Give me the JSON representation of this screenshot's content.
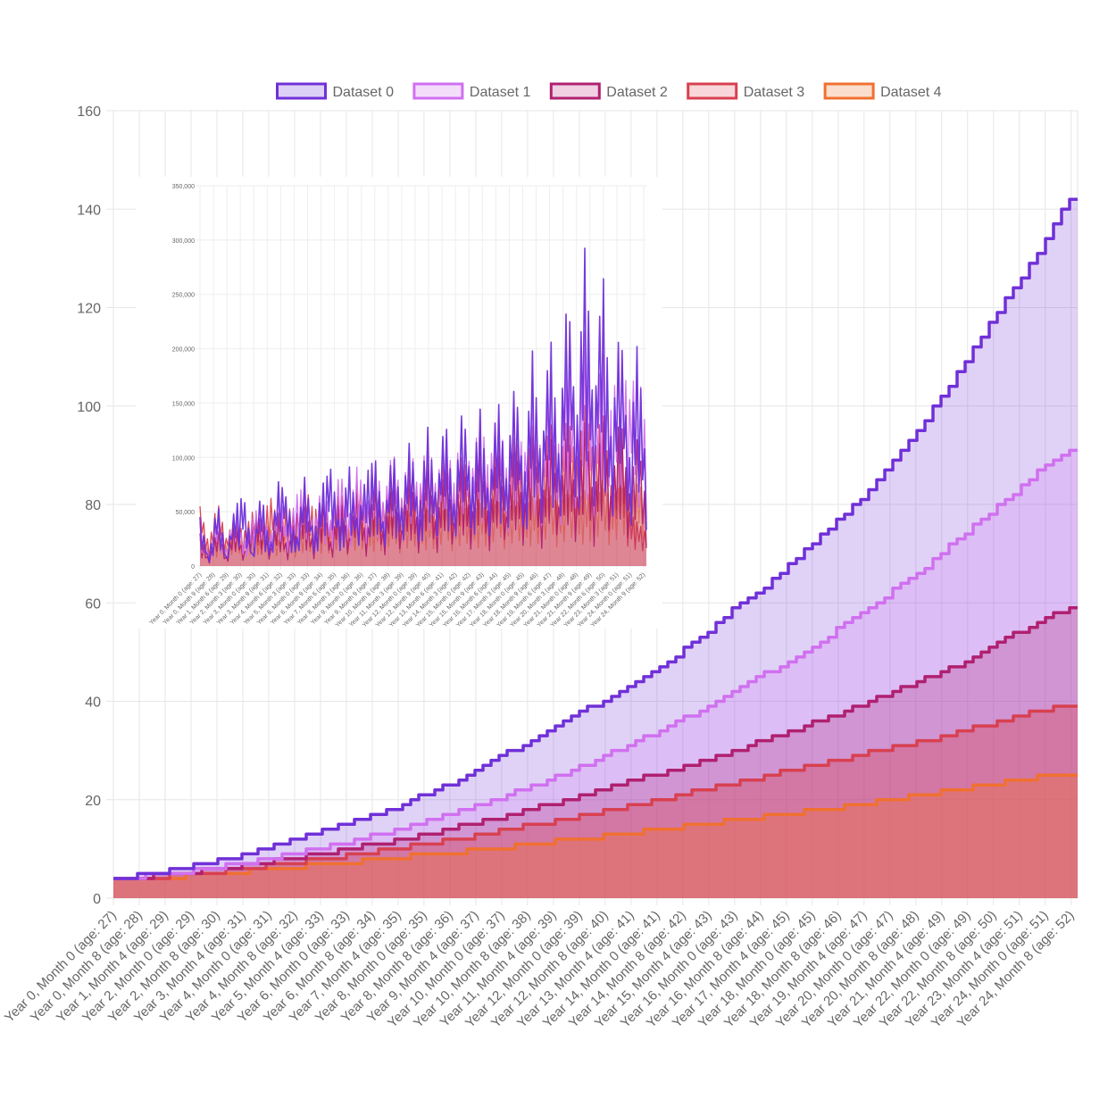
{
  "colors": {
    "dataset0": "#7030d8",
    "dataset1": "#d070f0",
    "dataset2": "#b02070",
    "dataset3": "#d84050",
    "dataset4": "#f07030",
    "grid": "#e6e6e6",
    "tick_text": "#666666"
  },
  "legend": {
    "position": "top",
    "items": [
      {
        "label": "Dataset 0",
        "color": "#7030d8",
        "fill": "#dcd0f6"
      },
      {
        "label": "Dataset 1",
        "color": "#d070f0",
        "fill": "#f4ddfb"
      },
      {
        "label": "Dataset 2",
        "color": "#b02070",
        "fill": "#f0d0e2"
      },
      {
        "label": "Dataset 3",
        "color": "#d84050",
        "fill": "#f8d6da"
      },
      {
        "label": "Dataset 4",
        "color": "#f07030",
        "fill": "#fbddcd"
      }
    ]
  },
  "chart_data": [
    {
      "type": "area",
      "title": "",
      "xlabel": "",
      "ylabel": "",
      "ylim": [
        0,
        160
      ],
      "yticks": [
        0,
        20,
        40,
        60,
        80,
        100,
        120,
        140,
        160
      ],
      "grid": true,
      "legend_position": "top",
      "x_tick_labels": [
        "Year 0, Month 0 (age: 27)",
        "Year 0, Month 8 (age: 28)",
        "Year 1, Month 4 (age: 29)",
        "Year 2, Month 0 (age: 29)",
        "Year 2, Month 8 (age: 30)",
        "Year 3, Month 4 (age: 31)",
        "Year 4, Month 0 (age: 31)",
        "Year 4, Month 8 (age: 32)",
        "Year 5, Month 4 (age: 33)",
        "Year 6, Month 0 (age: 33)",
        "Year 6, Month 8 (age: 34)",
        "Year 7, Month 4 (age: 35)",
        "Year 8, Month 0 (age: 35)",
        "Year 8, Month 8 (age: 36)",
        "Year 9, Month 4 (age: 37)",
        "Year 10, Month 0 (age: 37)",
        "Year 10, Month 8 (age: 38)",
        "Year 11, Month 4 (age: 39)",
        "Year 12, Month 0 (age: 39)",
        "Year 12, Month 8 (age: 40)",
        "Year 13, Month 4 (age: 41)",
        "Year 14, Month 0 (age: 41)",
        "Year 14, Month 8 (age: 42)",
        "Year 15, Month 4 (age: 43)",
        "Year 16, Month 0 (age: 43)",
        "Year 16, Month 8 (age: 44)",
        "Year 17, Month 4 (age: 45)",
        "Year 18, Month 0 (age: 45)",
        "Year 18, Month 8 (age: 46)",
        "Year 19, Month 4 (age: 47)",
        "Year 20, Month 0 (age: 47)",
        "Year 20, Month 8 (age: 48)",
        "Year 21, Month 4 (age: 49)",
        "Year 22, Month 0 (age: 49)",
        "Year 22, Month 8 (age: 50)",
        "Year 23, Month 4 (age: 51)",
        "Year 24, Month 0 (age: 51)",
        "Year 24, Month 8 (age: 52)"
      ],
      "series": [
        {
          "name": "Dataset 0",
          "values": [
            4,
            4.5,
            5,
            5.5,
            6,
            7,
            7.5,
            8,
            9,
            10,
            11,
            12,
            13,
            14,
            15,
            16,
            17,
            18,
            20,
            21,
            23,
            24,
            26,
            28,
            30,
            31,
            33,
            35,
            37,
            39,
            41,
            43,
            45,
            47,
            49,
            52,
            54,
            57,
            60,
            62,
            65,
            68,
            71,
            74,
            77,
            80,
            84,
            88,
            92,
            96,
            101,
            106,
            111,
            116,
            121,
            126,
            131,
            137,
            142
          ]
        },
        {
          "name": "Dataset 1",
          "values": [
            4,
            4.2,
            4.6,
            5,
            5.4,
            6,
            6.5,
            7,
            7.6,
            8.3,
            9,
            9.8,
            10.5,
            11.3,
            12.2,
            13.1,
            14,
            15,
            16,
            17,
            18.2,
            19.4,
            20.6,
            22,
            23.4,
            24.8,
            26.3,
            27.8,
            29.4,
            31,
            32.7,
            34.4,
            36.2,
            38,
            40,
            42,
            44,
            46,
            48,
            50,
            52.5,
            55,
            57.5,
            60,
            62.5,
            65,
            68,
            71,
            74,
            77,
            80,
            83,
            86,
            89,
            91
          ]
        },
        {
          "name": "Dataset 2",
          "values": [
            4,
            4.1,
            4.4,
            4.8,
            5.1,
            5.5,
            6,
            6.4,
            6.9,
            7.4,
            8,
            8.5,
            9.1,
            9.7,
            10.3,
            11,
            11.7,
            12.4,
            13.1,
            13.9,
            14.7,
            15.5,
            16.3,
            17.2,
            18.1,
            19,
            20,
            21,
            22,
            23,
            24,
            25,
            26,
            27,
            28,
            29.2,
            30.4,
            31.6,
            32.8,
            34,
            35.3,
            36.6,
            38,
            39.4,
            40.8,
            42.2,
            43.7,
            45.2,
            46.7,
            48.2,
            50,
            52,
            54,
            56,
            57.5,
            59
          ]
        },
        {
          "name": "Dataset 3",
          "values": [
            4,
            4,
            4.2,
            4.5,
            4.8,
            5.1,
            5.5,
            5.9,
            6.3,
            6.7,
            7.1,
            7.6,
            8.1,
            8.6,
            9.1,
            9.6,
            10.1,
            10.7,
            11.3,
            11.9,
            12.5,
            13.1,
            13.7,
            14.4,
            15.1,
            15.8,
            16.5,
            17.2,
            17.9,
            18.6,
            19.4,
            20.2,
            21,
            21.8,
            22.6,
            23.4,
            24.2,
            25,
            25.8,
            26.6,
            27.4,
            28.2,
            29,
            29.8,
            30.6,
            31.4,
            32.2,
            33,
            34,
            35,
            36,
            37,
            38,
            38.5,
            39
          ]
        },
        {
          "name": "Dataset 4",
          "values": [
            4,
            4,
            4.1,
            4.3,
            4.5,
            4.7,
            5,
            5.2,
            5.5,
            5.8,
            6,
            6.3,
            6.6,
            6.9,
            7.2,
            7.5,
            7.8,
            8.1,
            8.4,
            8.7,
            9,
            9.3,
            9.6,
            10,
            10.3,
            10.7,
            11,
            11.4,
            11.8,
            12.2,
            12.6,
            13,
            13.4,
            13.8,
            14.2,
            14.6,
            15,
            15.4,
            15.8,
            16.2,
            16.6,
            17,
            17.4,
            17.8,
            18.2,
            18.6,
            19,
            19.5,
            20,
            20.5,
            21,
            21.5,
            22,
            22.5,
            23,
            23.5,
            24,
            24.5,
            25,
            25
          ]
        }
      ]
    },
    {
      "type": "line",
      "title": "",
      "xlabel": "",
      "ylabel": "",
      "ylim": [
        0,
        350000
      ],
      "yticks": [
        0,
        50000,
        100000,
        150000,
        200000,
        250000,
        300000,
        350000
      ],
      "ytick_labels": [
        "0",
        "50,000",
        "100,000",
        "150,000",
        "200,000",
        "250,000",
        "300,000",
        "350,000"
      ],
      "grid": true,
      "x_tick_labels": [
        "Year 0, Month 0 (age: 27)",
        "Year 0, Month 9 (age: 28)",
        "Year 1, Month 6 (age: 29)",
        "Year 2, Month 3 (age: 30)",
        "Year 3, Month 0 (age: 30)",
        "Year 3, Month 9 (age: 31)",
        "Year 4, Month 6 (age: 32)",
        "Year 5, Month 3 (age: 33)",
        "Year 6, Month 0 (age: 33)",
        "Year 6, Month 9 (age: 34)",
        "Year 7, Month 6 (age: 35)",
        "Year 8, Month 3 (age: 36)",
        "Year 9, Month 0 (age: 36)",
        "Year 9, Month 9 (age: 37)",
        "Year 10, Month 6 (age: 38)",
        "Year 11, Month 3 (age: 39)",
        "Year 12, Month 0 (age: 39)",
        "Year 12, Month 9 (age: 40)",
        "Year 13, Month 6 (age: 41)",
        "Year 14, Month 3 (age: 42)",
        "Year 15, Month 0 (age: 42)",
        "Year 15, Month 9 (age: 43)",
        "Year 16, Month 6 (age: 44)",
        "Year 17, Month 3 (age: 45)",
        "Year 18, Month 0 (age: 45)",
        "Year 18, Month 9 (age: 46)",
        "Year 19, Month 6 (age: 47)",
        "Year 20, Month 3 (age: 48)",
        "Year 21, Month 0 (age: 48)",
        "Year 21, Month 9 (age: 49)",
        "Year 22, Month 6 (age: 50)",
        "Year 23, Month 3 (age: 51)",
        "Year 24, Month 0 (age: 51)",
        "Year 24, Month 9 (age: 52)"
      ],
      "series": [
        {
          "name": "Dataset 0",
          "values": [
            45000,
            5000,
            60000,
            8000,
            55000,
            65000,
            10000,
            70000,
            15000,
            80000,
            60000,
            20000,
            85000,
            25000,
            75000,
            90000,
            30000,
            95000,
            40000,
            85000,
            100000,
            35000,
            110000,
            50000,
            120000,
            45000,
            130000,
            60000,
            140000,
            55000,
            150000,
            70000,
            145000,
            60000,
            160000,
            80000,
            175000,
            70000,
            200000,
            90000,
            220000,
            100000,
            260000,
            120000,
            300000,
            130000,
            280000,
            110000,
            230000,
            90000,
            210000,
            80000
          ]
        },
        {
          "name": "Dataset 1",
          "values": [
            40000,
            10000,
            50000,
            15000,
            55000,
            20000,
            45000,
            60000,
            25000,
            70000,
            30000,
            65000,
            75000,
            35000,
            80000,
            40000,
            90000,
            45000,
            95000,
            50000,
            100000,
            55000,
            110000,
            60000,
            115000,
            65000,
            125000,
            70000,
            130000,
            75000,
            140000,
            80000,
            145000,
            85000,
            150000,
            90000,
            160000,
            95000,
            170000,
            100000,
            185000,
            110000,
            200000,
            120000,
            220000,
            130000,
            200000,
            140000,
            210000,
            150000,
            190000,
            120000
          ]
        },
        {
          "name": "Dataset 2",
          "values": [
            30000,
            5000,
            35000,
            8000,
            40000,
            10000,
            38000,
            45000,
            12000,
            50000,
            15000,
            48000,
            55000,
            18000,
            60000,
            20000,
            65000,
            22000,
            70000,
            25000,
            75000,
            28000,
            80000,
            30000,
            85000,
            32000,
            90000,
            35000,
            95000,
            38000,
            100000,
            40000,
            105000,
            42000,
            110000,
            45000,
            115000,
            48000,
            120000,
            50000,
            125000,
            52000,
            130000,
            55000,
            135000,
            58000,
            140000,
            60000,
            145000,
            62000,
            120000,
            55000
          ]
        },
        {
          "name": "Dataset 3",
          "values": [
            55000,
            20000,
            60000,
            25000,
            45000,
            30000,
            50000,
            35000,
            65000,
            40000,
            55000,
            45000,
            75000,
            50000,
            60000,
            40000,
            70000,
            45000,
            80000,
            50000,
            90000,
            55000,
            85000,
            60000,
            100000,
            65000,
            95000,
            70000,
            110000,
            60000,
            105000,
            65000,
            115000,
            70000,
            120000,
            75000,
            125000,
            80000,
            130000,
            85000,
            135000,
            90000,
            140000,
            95000,
            150000,
            100000,
            145000,
            70000,
            130000,
            50000,
            40000,
            30000
          ]
        },
        {
          "name": "Dataset 4",
          "values": [
            25000,
            15000,
            28000,
            18000,
            30000,
            20000,
            32000,
            22000,
            34000,
            24000,
            36000,
            26000,
            38000,
            28000,
            40000,
            30000,
            42000,
            32000,
            44000,
            34000,
            46000,
            36000,
            48000,
            38000,
            50000,
            40000,
            52000,
            42000,
            54000,
            44000,
            56000,
            46000,
            58000,
            48000,
            60000,
            50000,
            62000,
            52000,
            64000,
            54000,
            66000,
            56000,
            68000,
            58000,
            70000,
            60000,
            72000,
            62000,
            74000,
            64000,
            76000,
            66000
          ]
        }
      ]
    }
  ]
}
